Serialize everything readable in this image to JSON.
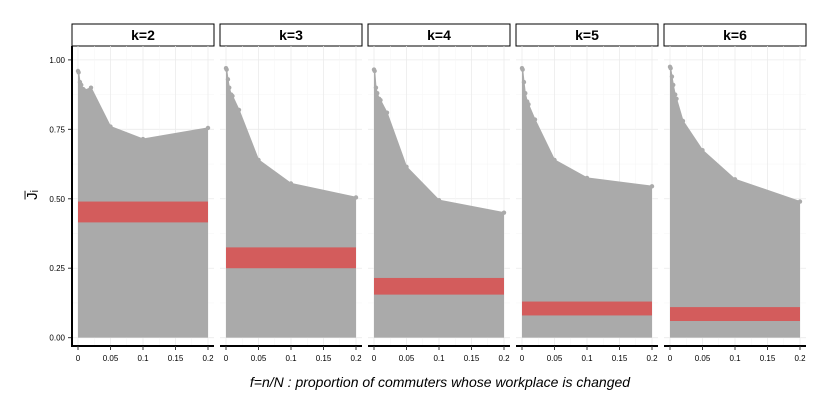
{
  "chart_data": {
    "type": "area",
    "x_title": "f=n/N : proportion of commuters whose workplace is changed",
    "y_title": "J̅ᵢ",
    "ylim": [
      0,
      1.05
    ],
    "xlim": [
      0,
      0.2
    ],
    "y_ticks": [
      {
        "value": 0.0,
        "label": "0.00"
      },
      {
        "value": 0.25,
        "label": "0.25"
      },
      {
        "value": 0.5,
        "label": "0.50"
      },
      {
        "value": 0.75,
        "label": "0.75"
      },
      {
        "value": 1.0,
        "label": "1.00"
      }
    ],
    "x_ticks": [
      {
        "value": 0,
        "label": "0"
      },
      {
        "value": 0.05,
        "label": "0.05"
      },
      {
        "value": 0.1,
        "label": "0.1"
      },
      {
        "value": 0.15,
        "label": "0.15"
      },
      {
        "value": 0.2,
        "label": "0.2"
      }
    ],
    "colors": {
      "area": "#aaaaaa",
      "band": "#d35c5c",
      "grid": "#ebebeb",
      "point": "#aaaaaa"
    },
    "panels": [
      {
        "label": "k=2",
        "points": [
          [
            0,
            0.96
          ],
          [
            0.001,
            0.955
          ],
          [
            0.003,
            0.92
          ],
          [
            0.005,
            0.91
          ],
          [
            0.008,
            0.895
          ],
          [
            0.01,
            0.89
          ],
          [
            0.02,
            0.9
          ],
          [
            0.05,
            0.76
          ],
          [
            0.1,
            0.715
          ],
          [
            0.2,
            0.755
          ]
        ],
        "band": [
          0.415,
          0.49
        ]
      },
      {
        "label": "k=3",
        "points": [
          [
            0,
            0.97
          ],
          [
            0.001,
            0.965
          ],
          [
            0.003,
            0.93
          ],
          [
            0.005,
            0.9
          ],
          [
            0.008,
            0.875
          ],
          [
            0.01,
            0.87
          ],
          [
            0.02,
            0.82
          ],
          [
            0.05,
            0.64
          ],
          [
            0.1,
            0.555
          ],
          [
            0.2,
            0.505
          ]
        ],
        "band": [
          0.25,
          0.325
        ]
      },
      {
        "label": "k=4",
        "points": [
          [
            0,
            0.965
          ],
          [
            0.001,
            0.96
          ],
          [
            0.003,
            0.9
          ],
          [
            0.005,
            0.88
          ],
          [
            0.008,
            0.86
          ],
          [
            0.01,
            0.855
          ],
          [
            0.02,
            0.81
          ],
          [
            0.05,
            0.615
          ],
          [
            0.1,
            0.495
          ],
          [
            0.2,
            0.45
          ]
        ],
        "band": [
          0.155,
          0.215
        ]
      },
      {
        "label": "k=5",
        "points": [
          [
            0,
            0.97
          ],
          [
            0.001,
            0.965
          ],
          [
            0.003,
            0.92
          ],
          [
            0.005,
            0.88
          ],
          [
            0.008,
            0.85
          ],
          [
            0.01,
            0.84
          ],
          [
            0.02,
            0.785
          ],
          [
            0.05,
            0.64
          ],
          [
            0.1,
            0.575
          ],
          [
            0.2,
            0.545
          ]
        ],
        "band": [
          0.08,
          0.13
        ]
      },
      {
        "label": "k=6",
        "points": [
          [
            0,
            0.975
          ],
          [
            0.001,
            0.97
          ],
          [
            0.003,
            0.94
          ],
          [
            0.005,
            0.91
          ],
          [
            0.008,
            0.875
          ],
          [
            0.01,
            0.86
          ],
          [
            0.02,
            0.78
          ],
          [
            0.05,
            0.675
          ],
          [
            0.1,
            0.57
          ],
          [
            0.2,
            0.49
          ]
        ],
        "band": [
          0.06,
          0.11
        ]
      }
    ]
  }
}
